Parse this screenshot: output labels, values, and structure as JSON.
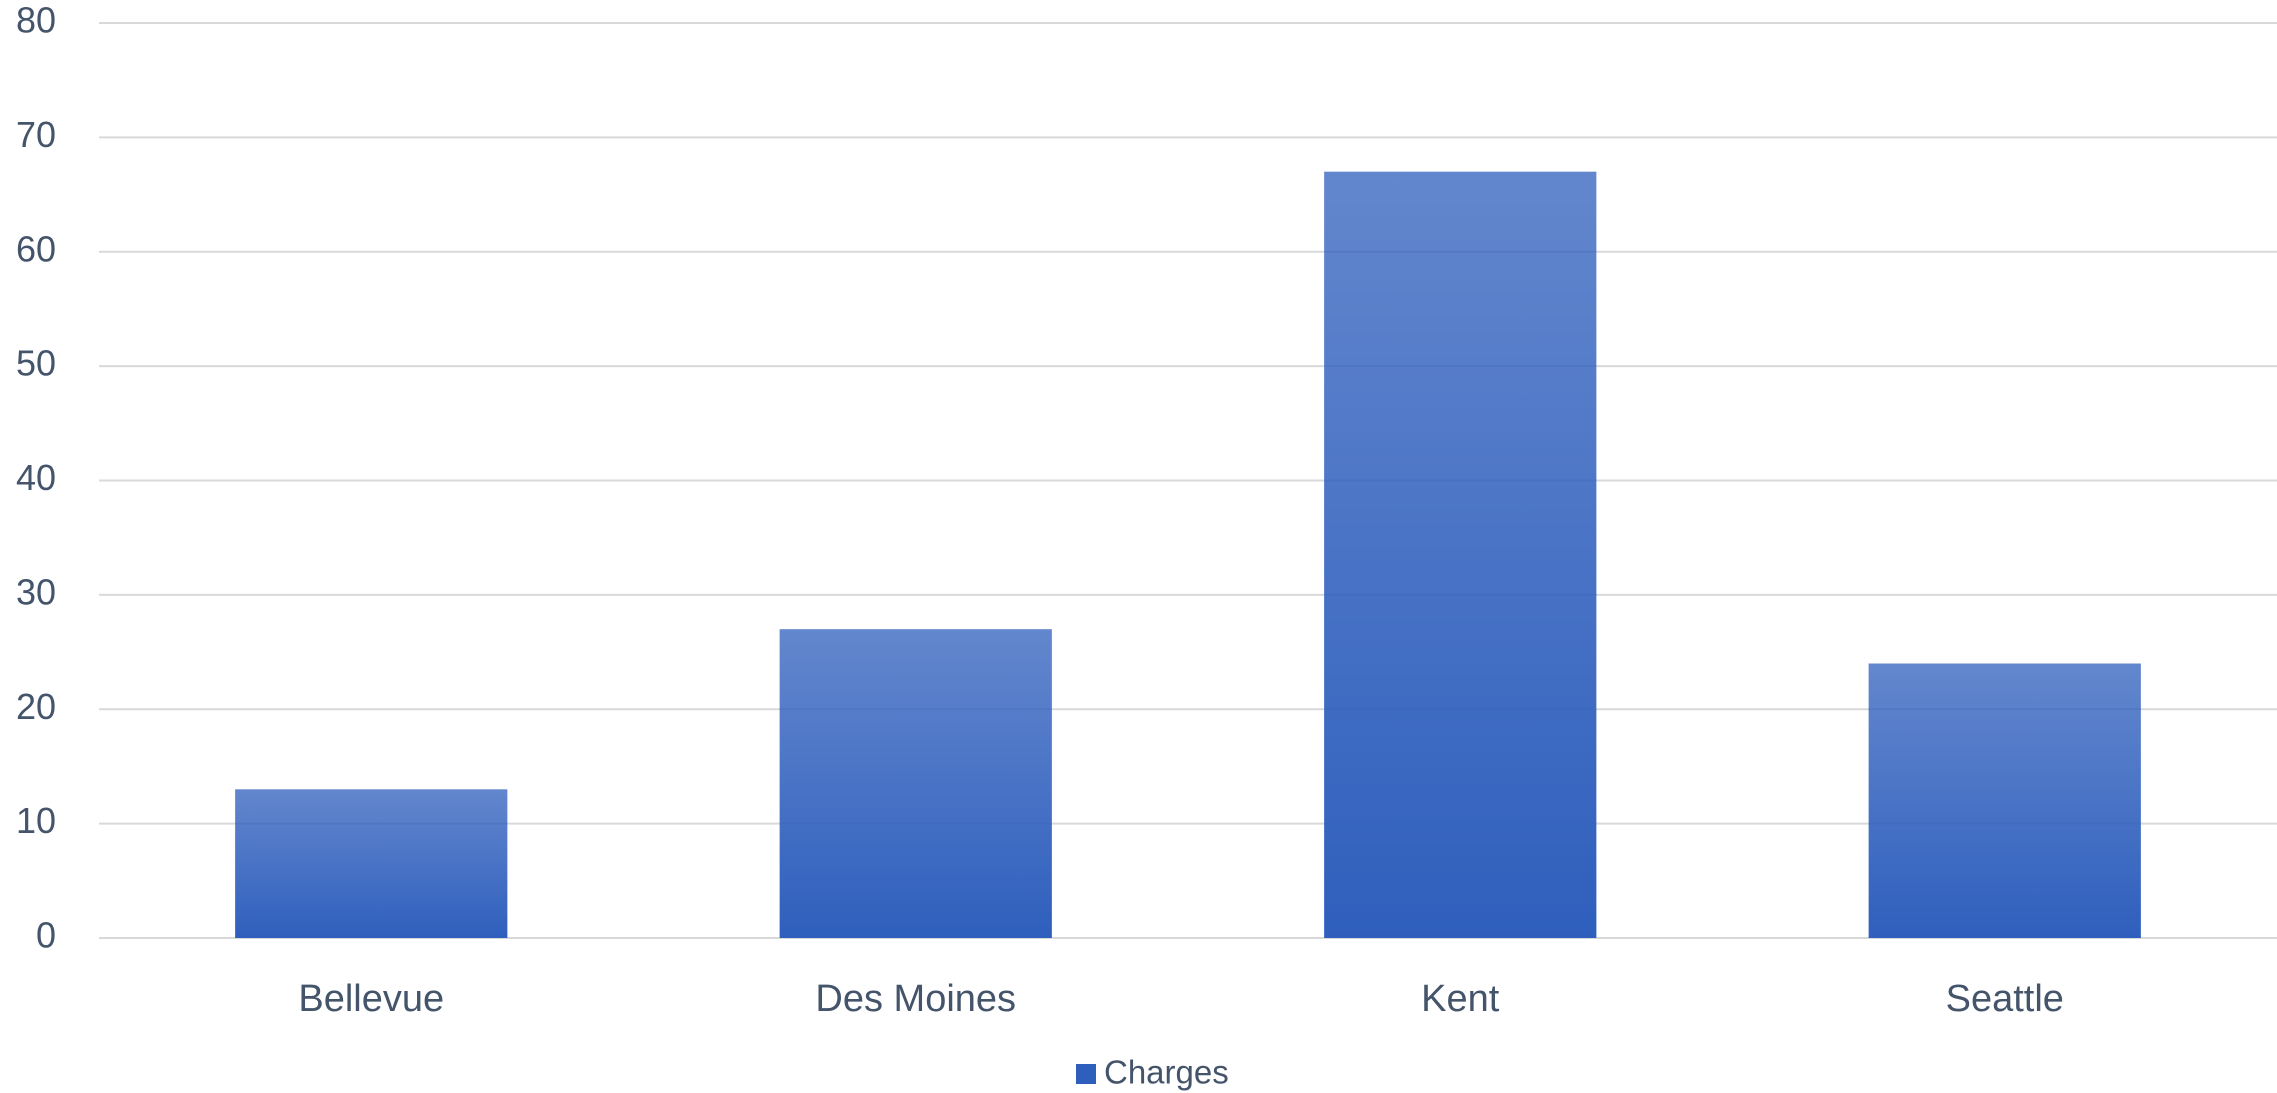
{
  "chart_data": {
    "type": "bar",
    "categories": [
      "Bellevue",
      "Des Moines",
      "Kent",
      "Seattle"
    ],
    "series": [
      {
        "name": "Charges",
        "color": "#2f5fbd",
        "values": [
          13,
          27,
          67,
          24
        ]
      }
    ],
    "ylim": [
      0,
      80
    ],
    "yticks": [
      0,
      10,
      20,
      30,
      40,
      50,
      60,
      70,
      80
    ],
    "grid": true,
    "legend": "bottom"
  }
}
